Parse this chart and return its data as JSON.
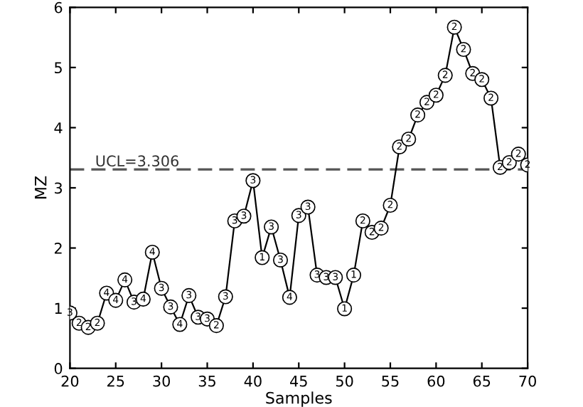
{
  "chart_data": {
    "type": "line",
    "xlabel": "Samples",
    "ylabel": "MZ",
    "x": [
      20,
      21,
      22,
      23,
      24,
      25,
      26,
      27,
      28,
      29,
      30,
      31,
      32,
      33,
      34,
      35,
      36,
      37,
      38,
      39,
      40,
      41,
      42,
      43,
      44,
      45,
      46,
      47,
      48,
      49,
      50,
      51,
      52,
      53,
      54,
      55,
      56,
      57,
      58,
      59,
      60,
      61,
      62,
      63,
      64,
      65,
      66,
      67,
      68,
      69,
      70
    ],
    "series": [
      {
        "color": "#000000",
        "values": [
          0.92,
          0.75,
          0.68,
          0.75,
          1.25,
          1.13,
          1.47,
          1.1,
          1.15,
          1.93,
          1.33,
          1.02,
          0.73,
          1.21,
          0.85,
          0.82,
          0.71,
          1.19,
          2.45,
          2.53,
          3.12,
          1.84,
          2.35,
          1.8,
          1.18,
          2.54,
          2.68,
          1.55,
          1.51,
          1.51,
          0.99,
          1.55,
          2.45,
          2.26,
          2.33,
          2.71,
          3.68,
          3.81,
          4.21,
          4.42,
          4.54,
          4.87,
          5.67,
          5.3,
          4.9,
          4.8,
          4.49,
          3.34,
          3.42,
          3.56,
          3.38
        ]
      }
    ],
    "marker": "circle",
    "line_style": "solid",
    "grid": false,
    "legend": false,
    "xlim": [
      20,
      70
    ],
    "xticks": [
      20,
      25,
      30,
      35,
      40,
      45,
      50,
      55,
      60,
      65,
      70
    ],
    "ylim": [
      0,
      6
    ],
    "yticks": [
      0,
      1,
      2,
      3,
      4,
      5,
      6
    ],
    "ref_lines": [
      {
        "axis": "y",
        "value": 3.306,
        "label": "UCL=3.306",
        "color": "#555555",
        "line_style": "dashed"
      }
    ],
    "annotations": [
      {
        "text": "3",
        "x": 20,
        "y": 0.92
      },
      {
        "text": "2",
        "x": 21,
        "y": 0.75
      },
      {
        "text": "2",
        "x": 22,
        "y": 0.68
      },
      {
        "text": "2",
        "x": 23,
        "y": 0.75
      },
      {
        "text": "4",
        "x": 24,
        "y": 1.25
      },
      {
        "text": "4",
        "x": 25,
        "y": 1.13
      },
      {
        "text": "4",
        "x": 26,
        "y": 1.47
      },
      {
        "text": "3",
        "x": 27,
        "y": 1.1
      },
      {
        "text": "4",
        "x": 28,
        "y": 1.15
      },
      {
        "text": "4",
        "x": 29,
        "y": 1.93
      },
      {
        "text": "3",
        "x": 30,
        "y": 1.33
      },
      {
        "text": "3",
        "x": 31,
        "y": 1.02
      },
      {
        "text": "4",
        "x": 32,
        "y": 0.73
      },
      {
        "text": "3",
        "x": 33,
        "y": 1.21
      },
      {
        "text": "3",
        "x": 34,
        "y": 0.85
      },
      {
        "text": "3",
        "x": 35,
        "y": 0.82
      },
      {
        "text": "2",
        "x": 36,
        "y": 0.71
      },
      {
        "text": "3",
        "x": 37,
        "y": 1.19
      },
      {
        "text": "3",
        "x": 38,
        "y": 2.45
      },
      {
        "text": "3",
        "x": 39,
        "y": 2.53
      },
      {
        "text": "3",
        "x": 40,
        "y": 3.12
      },
      {
        "text": "1",
        "x": 41,
        "y": 1.84
      },
      {
        "text": "3",
        "x": 42,
        "y": 2.35
      },
      {
        "text": "3",
        "x": 43,
        "y": 1.8
      },
      {
        "text": "4",
        "x": 44,
        "y": 1.18
      },
      {
        "text": "3",
        "x": 45,
        "y": 2.54
      },
      {
        "text": "3",
        "x": 46,
        "y": 2.68
      },
      {
        "text": "3",
        "x": 47,
        "y": 1.55
      },
      {
        "text": "3",
        "x": 48,
        "y": 1.51
      },
      {
        "text": "3",
        "x": 49,
        "y": 1.51
      },
      {
        "text": "1",
        "x": 50,
        "y": 0.99
      },
      {
        "text": "1",
        "x": 51,
        "y": 1.55
      },
      {
        "text": "2",
        "x": 52,
        "y": 2.45
      },
      {
        "text": "2",
        "x": 53,
        "y": 2.26
      },
      {
        "text": "2",
        "x": 54,
        "y": 2.33
      },
      {
        "text": "2",
        "x": 55,
        "y": 2.71
      },
      {
        "text": "2",
        "x": 56,
        "y": 3.68
      },
      {
        "text": "2",
        "x": 57,
        "y": 3.81
      },
      {
        "text": "2",
        "x": 58,
        "y": 4.21
      },
      {
        "text": "2",
        "x": 59,
        "y": 4.42
      },
      {
        "text": "2",
        "x": 60,
        "y": 4.54
      },
      {
        "text": "2",
        "x": 61,
        "y": 4.87
      },
      {
        "text": "2",
        "x": 62,
        "y": 5.67
      },
      {
        "text": "2",
        "x": 63,
        "y": 5.3
      },
      {
        "text": "2",
        "x": 64,
        "y": 4.9
      },
      {
        "text": "2",
        "x": 65,
        "y": 4.8
      },
      {
        "text": "2",
        "x": 66,
        "y": 4.49
      },
      {
        "text": "2",
        "x": 67,
        "y": 3.34
      },
      {
        "text": "2",
        "x": 68,
        "y": 3.42
      },
      {
        "text": "2",
        "x": 69,
        "y": 3.56
      },
      {
        "text": "2",
        "x": 70,
        "y": 3.38
      }
    ]
  }
}
